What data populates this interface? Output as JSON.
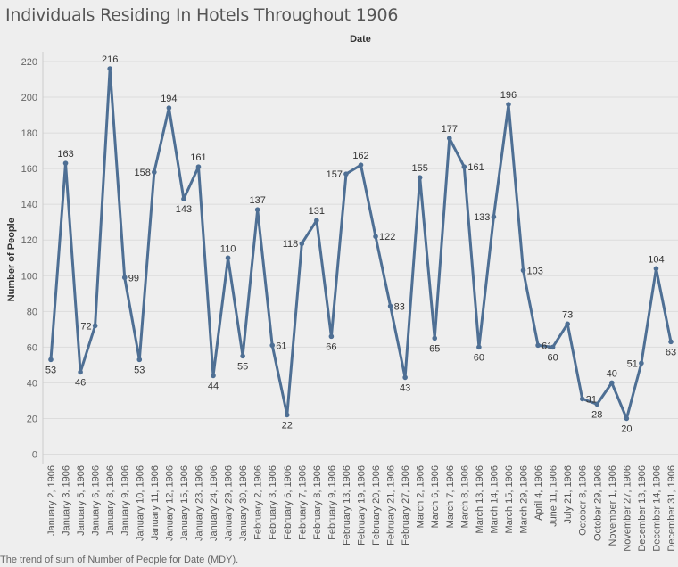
{
  "chart_data": {
    "type": "line",
    "title": "Individuals Residing In Hotels Throughout 1906",
    "xlabel": "Date",
    "ylabel": "Number of People",
    "caption": "The trend of sum of Number of People for Date (MDY).",
    "ylim": [
      0,
      220
    ],
    "yticks": [
      0,
      20,
      40,
      60,
      80,
      100,
      120,
      140,
      160,
      180,
      200,
      220
    ],
    "grid": true,
    "line_color": "#4e6f94",
    "categories": [
      "January 2, 1906",
      "January 3, 1906",
      "January 5, 1906",
      "January 6, 1906",
      "January 8, 1906",
      "January 9, 1906",
      "January 10, 1906",
      "January 11, 1906",
      "January 12, 1906",
      "January 15, 1906",
      "January 23, 1906",
      "January 24, 1906",
      "January 29, 1906",
      "January 30, 1906",
      "February 2, 1906",
      "February 3, 1906",
      "February 6, 1906",
      "February 7, 1906",
      "February 8, 1906",
      "February 9, 1906",
      "February 13, 1906",
      "February 19, 1906",
      "February 20, 1906",
      "February 21, 1906",
      "February 27, 1906",
      "March 2, 1906",
      "March 6, 1906",
      "March 7, 1906",
      "March 8, 1906",
      "March 13, 1906",
      "March 14, 1906",
      "March 15, 1906",
      "March 29, 1906",
      "April 4, 1906",
      "June 11, 1906",
      "July 21, 1906",
      "October 8, 1906",
      "October 29, 1906",
      "November 1, 1906",
      "November 27, 1906",
      "December 13, 1906",
      "December 14, 1906",
      "December 31, 1906"
    ],
    "values": [
      53,
      163,
      46,
      72,
      216,
      99,
      53,
      158,
      194,
      143,
      161,
      44,
      110,
      55,
      137,
      61,
      22,
      118,
      131,
      66,
      157,
      162,
      122,
      83,
      43,
      155,
      65,
      177,
      161,
      60,
      133,
      196,
      103,
      61,
      60,
      73,
      31,
      28,
      40,
      20,
      51,
      104,
      63
    ],
    "data_labels": [
      53,
      163,
      46,
      72,
      216,
      99,
      53,
      158,
      194,
      143,
      161,
      44,
      110,
      55,
      137,
      61,
      22,
      118,
      131,
      66,
      157,
      162,
      122,
      83,
      43,
      155,
      65,
      177,
      161,
      60,
      133,
      196,
      103,
      61,
      60,
      73,
      31,
      28,
      40,
      20,
      51,
      104,
      63
    ]
  }
}
